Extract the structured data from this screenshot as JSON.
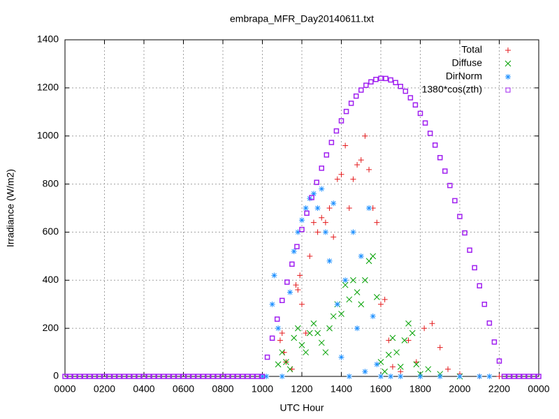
{
  "chart_data": {
    "type": "scatter",
    "title": "embrapa_MFR_Day20140611.txt",
    "xlabel": "UTC Hour",
    "ylabel": "Irradiance (W/m2)",
    "xlim": [
      0,
      24
    ],
    "xticks": [
      {
        "value": 0,
        "label": "0000"
      },
      {
        "value": 2,
        "label": "0200"
      },
      {
        "value": 4,
        "label": "0400"
      },
      {
        "value": 6,
        "label": "0600"
      },
      {
        "value": 8,
        "label": "0800"
      },
      {
        "value": 10,
        "label": "1000"
      },
      {
        "value": 12,
        "label": "1200"
      },
      {
        "value": 14,
        "label": "1400"
      },
      {
        "value": 16,
        "label": "1600"
      },
      {
        "value": 18,
        "label": "1800"
      },
      {
        "value": 20,
        "label": "2000"
      },
      {
        "value": 22,
        "label": "2200"
      },
      {
        "value": 24,
        "label": "0000"
      }
    ],
    "ylim": [
      0,
      1400
    ],
    "yticks": [
      0,
      200,
      400,
      600,
      800,
      1000,
      1200,
      1400
    ],
    "grid": true,
    "legend": "top-right",
    "series": [
      {
        "name": "Total",
        "color": "#e41a1c",
        "marker": "plus",
        "x": [
          10.9,
          11.0,
          11.1,
          11.2,
          11.5,
          11.7,
          11.8,
          11.9,
          12.0,
          12.2,
          12.4,
          12.6,
          12.8,
          13.0,
          13.2,
          13.4,
          13.6,
          13.8,
          14.0,
          14.2,
          14.4,
          14.6,
          14.8,
          15.0,
          15.2,
          15.4,
          15.6,
          15.8,
          16.0,
          16.2,
          16.4,
          16.6,
          17.0,
          17.4,
          17.8,
          18.2,
          18.6,
          19.0,
          19.4,
          20.0,
          21.0,
          22.0
        ],
        "values": [
          150,
          180,
          100,
          60,
          30,
          380,
          360,
          420,
          300,
          180,
          500,
          640,
          600,
          660,
          640,
          700,
          580,
          820,
          840,
          960,
          700,
          820,
          880,
          900,
          1000,
          860,
          700,
          640,
          300,
          320,
          150,
          40,
          20,
          150,
          60,
          200,
          220,
          120,
          30,
          10,
          0,
          0
        ]
      },
      {
        "name": "Diffuse",
        "color": "#00a000",
        "marker": "cross",
        "x": [
          10.8,
          11.0,
          11.2,
          11.4,
          11.6,
          11.8,
          12.0,
          12.2,
          12.4,
          12.6,
          12.8,
          13.0,
          13.2,
          13.4,
          13.6,
          13.8,
          14.0,
          14.2,
          14.4,
          14.6,
          14.8,
          15.0,
          15.2,
          15.4,
          15.6,
          15.8,
          16.0,
          16.2,
          16.4,
          16.6,
          16.8,
          17.0,
          17.2,
          17.4,
          17.6,
          17.8,
          18.0,
          18.4,
          19.0,
          20.0
        ],
        "values": [
          50,
          100,
          60,
          30,
          160,
          200,
          130,
          100,
          180,
          220,
          180,
          140,
          100,
          200,
          250,
          300,
          260,
          380,
          320,
          400,
          350,
          300,
          400,
          480,
          500,
          330,
          60,
          20,
          90,
          160,
          100,
          40,
          150,
          220,
          180,
          50,
          10,
          30,
          10,
          0
        ]
      },
      {
        "name": "DirNorm",
        "color": "#1e90ff",
        "marker": "star",
        "x": [
          10.0,
          10.2,
          10.5,
          10.6,
          10.8,
          11.0,
          11.4,
          11.6,
          11.8,
          12.0,
          12.2,
          12.4,
          12.6,
          12.8,
          13.0,
          13.2,
          13.4,
          13.6,
          13.8,
          14.0,
          14.2,
          14.4,
          14.6,
          14.8,
          15.0,
          15.2,
          15.4,
          15.6,
          15.8,
          16.0,
          16.5,
          17.0,
          18.0,
          19.0,
          20.0,
          21.0,
          21.5
        ],
        "values": [
          0,
          0,
          300,
          420,
          200,
          0,
          350,
          520,
          600,
          650,
          700,
          740,
          760,
          700,
          780,
          600,
          480,
          720,
          300,
          80,
          400,
          0,
          600,
          200,
          500,
          20,
          700,
          250,
          50,
          0,
          0,
          0,
          0,
          0,
          0,
          0,
          0
        ]
      },
      {
        "name": "1380*cos(zth)",
        "color": "#a020f0",
        "marker": "square",
        "x": [
          0,
          0.25,
          0.5,
          0.75,
          1,
          1.25,
          1.5,
          1.75,
          2,
          2.25,
          2.5,
          2.75,
          3,
          3.25,
          3.5,
          3.75,
          4,
          4.25,
          4.5,
          4.75,
          5,
          5.25,
          5.5,
          5.75,
          6,
          6.25,
          6.5,
          6.75,
          7,
          7.25,
          7.5,
          7.75,
          8,
          8.25,
          8.5,
          8.75,
          9,
          9.25,
          9.5,
          9.75,
          10,
          10.25,
          10.5,
          10.75,
          11,
          11.25,
          11.5,
          11.75,
          12,
          12.25,
          12.5,
          12.75,
          13,
          13.25,
          13.5,
          13.75,
          14,
          14.25,
          14.5,
          14.75,
          15,
          15.25,
          15.5,
          15.75,
          16,
          16.25,
          16.5,
          16.75,
          17,
          17.25,
          17.5,
          17.75,
          18,
          18.25,
          18.5,
          18.75,
          19,
          19.25,
          19.5,
          19.75,
          20,
          20.25,
          20.5,
          20.75,
          21,
          21.25,
          21.5,
          21.75,
          22,
          22.25,
          22.5,
          22.75,
          23,
          23.25,
          23.5,
          23.75,
          24
        ],
        "values": [
          0,
          0,
          0,
          0,
          0,
          0,
          0,
          0,
          0,
          0,
          0,
          0,
          0,
          0,
          0,
          0,
          0,
          0,
          0,
          0,
          0,
          0,
          0,
          0,
          0,
          0,
          0,
          0,
          0,
          0,
          0,
          0,
          0,
          0,
          0,
          0,
          0,
          0,
          0,
          0,
          0,
          80,
          159,
          238,
          316,
          392,
          467,
          540,
          611,
          679,
          744,
          807,
          866,
          921,
          973,
          1021,
          1063,
          1102,
          1136,
          1166,
          1191,
          1211,
          1225,
          1235,
          1240,
          1239,
          1233,
          1222,
          1206,
          1186,
          1159,
          1129,
          1094,
          1054,
          1011,
          962,
          910,
          854,
          794,
          731,
          665,
          597,
          525,
          452,
          377,
          300,
          222,
          143,
          64,
          0,
          0,
          0,
          0,
          0,
          0,
          0,
          0
        ]
      }
    ]
  }
}
